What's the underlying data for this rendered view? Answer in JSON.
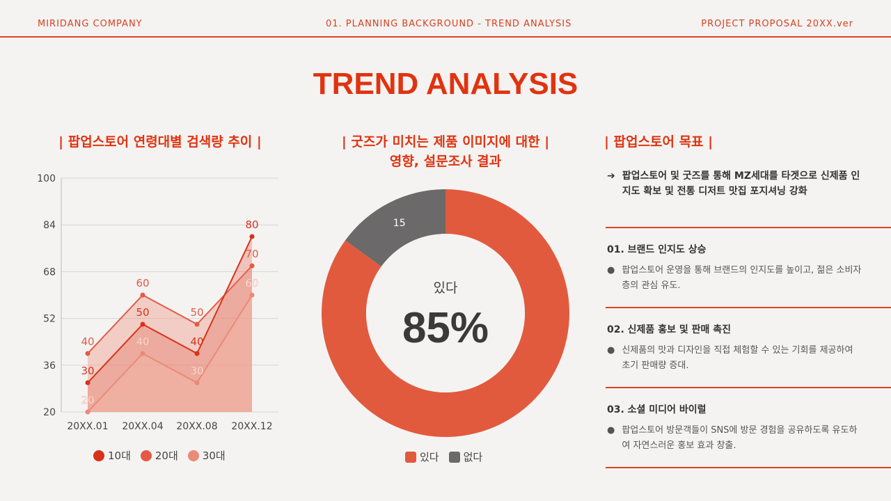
{
  "header": {
    "left": "MIRIDANG COMPANY",
    "center": "01. PLANNING BACKGROUND - TREND ANALYSIS",
    "right": "PROJECT PROPOSAL 20XX.ver"
  },
  "title": "TREND ANALYSIS",
  "left_section": {
    "title": "| 팝업스토어 연령대별 검색량 추이 |"
  },
  "middle_section": {
    "title": "|   굿즈가 미치는 제품 이미지에 대한   |\n영향, 설문조사 결과"
  },
  "right_section": {
    "title": "| 팝업스토어 목표 |",
    "goal_arrow": "➔",
    "goal": "팝업스토어 및 굿즈를 통해 MZ세대를 타겟으로 신제품 인지도 확보 및 전통 디저트 맛집 포지셔닝 강화",
    "items": [
      {
        "title": "01. 브랜드 인지도 상승",
        "bullet": "●",
        "text": "팝업스토어 운영을 통해 브랜드의 인지도를 높이고, 젊은 소비자층의 관심 유도."
      },
      {
        "title": "02. 신제품 홍보 및 판매 촉진",
        "bullet": "●",
        "text": "신제품의 맛과 디자인을 직접 체험할 수 있는 기회를 제공하여 초기 판매량 증대."
      },
      {
        "title": "03. 소셜 미디어 바이럴",
        "bullet": "●",
        "text": "팝업스토어 방문객들이 SNS에 방문 경험을 공유하도록 유도하여 자연스러운 홍보 효과 창출."
      }
    ]
  },
  "colors": {
    "accent": "#e0330f",
    "s10": "#d8321a",
    "s20": "#e35a45",
    "s30": "#e98b78",
    "donut_yes": "#e25a3d",
    "donut_no": "#6b6969"
  },
  "chart_data": [
    {
      "type": "area",
      "categories": [
        "20XX.01",
        "20XX.04",
        "20XX.08",
        "20XX.12"
      ],
      "ylim": [
        20,
        100
      ],
      "yticks": [
        "20",
        "36",
        "52",
        "68",
        "84",
        "100"
      ],
      "grid": true,
      "legend_position": "bottom",
      "series": [
        {
          "name": "10대",
          "values": [
            30,
            50,
            40,
            80
          ],
          "labels": [
            "30",
            "50",
            "40",
            "80"
          ]
        },
        {
          "name": "20대",
          "values": [
            40,
            60,
            50,
            70
          ],
          "labels": [
            "40",
            "60",
            "50",
            "70"
          ]
        },
        {
          "name": "30대",
          "values": [
            20,
            40,
            30,
            60
          ],
          "labels": [
            "20",
            "40",
            "30",
            "60"
          ]
        }
      ]
    },
    {
      "type": "pie",
      "donut": true,
      "slices": [
        {
          "name": "있다",
          "value": 85
        },
        {
          "name": "없다",
          "value": 15,
          "label": "15"
        }
      ],
      "center_label": "있다",
      "center_value": "85%",
      "legend_position": "bottom"
    }
  ]
}
